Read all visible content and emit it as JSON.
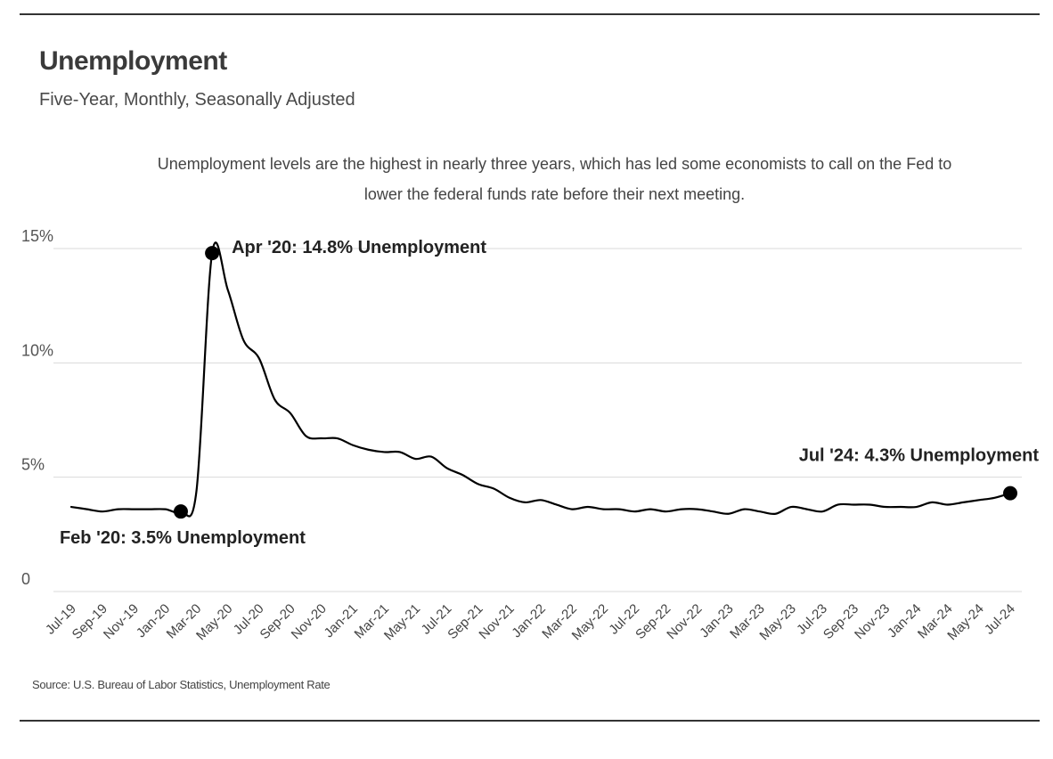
{
  "header": {
    "title": "Unemployment",
    "subtitle": "Five-Year, Monthly, Seasonally Adjusted",
    "note_line1": "Unemployment levels are the highest in nearly three years, which has led some economists to call on the Fed to",
    "note_line2": "lower the federal funds rate before their next meeting."
  },
  "footer": {
    "source": "Source:  U.S. Bureau of Labor Statistics, Unemployment Rate"
  },
  "colors": {
    "line": "#000000",
    "grid": "#d9d9d9",
    "rule": "#333333"
  },
  "chart_data": {
    "type": "line",
    "title": "Unemployment",
    "subtitle": "Five-Year, Monthly, Seasonally Adjusted",
    "ylim": [
      0,
      15
    ],
    "y_ticks": [
      {
        "value": 0,
        "label": "0"
      },
      {
        "value": 5,
        "label": "5%"
      },
      {
        "value": 10,
        "label": "10%"
      },
      {
        "value": 15,
        "label": "15%"
      }
    ],
    "x_tick_labels": [
      "Jul-19",
      "Sep-19",
      "Nov-19",
      "Jan-20",
      "Mar-20",
      "May-20",
      "Jul-20",
      "Sep-20",
      "Nov-20",
      "Jan-21",
      "Mar-21",
      "May-21",
      "Jul-21",
      "Sep-21",
      "Nov-21",
      "Jan-22",
      "Mar-22",
      "May-22",
      "Jul-22",
      "Sep-22",
      "Nov-22",
      "Jan-23",
      "Mar-23",
      "May-23",
      "Jul-23",
      "Sep-23",
      "Nov-23",
      "Jan-24",
      "Mar-24",
      "May-24",
      "Jul-24"
    ],
    "grid": true,
    "legend": "none",
    "series": [
      {
        "x": [
          "Jul-19",
          "Aug-19",
          "Sep-19",
          "Oct-19",
          "Nov-19",
          "Dec-19",
          "Jan-20",
          "Feb-20",
          "Mar-20",
          "Apr-20",
          "May-20",
          "Jun-20",
          "Jul-20",
          "Aug-20",
          "Sep-20",
          "Oct-20",
          "Nov-20",
          "Dec-20",
          "Jan-21",
          "Feb-21",
          "Mar-21",
          "Apr-21",
          "May-21",
          "Jun-21",
          "Jul-21",
          "Aug-21",
          "Sep-21",
          "Oct-21",
          "Nov-21",
          "Dec-21",
          "Jan-22",
          "Feb-22",
          "Mar-22",
          "Apr-22",
          "May-22",
          "Jun-22",
          "Jul-22",
          "Aug-22",
          "Sep-22",
          "Oct-22",
          "Nov-22",
          "Dec-22",
          "Jan-23",
          "Feb-23",
          "Mar-23",
          "Apr-23",
          "May-23",
          "Jun-23",
          "Jul-23",
          "Aug-23",
          "Sep-23",
          "Oct-23",
          "Nov-23",
          "Dec-23",
          "Jan-24",
          "Feb-24",
          "Mar-24",
          "Apr-24",
          "May-24",
          "Jun-24",
          "Jul-24"
        ],
        "values": [
          3.7,
          3.6,
          3.5,
          3.6,
          3.6,
          3.6,
          3.6,
          3.5,
          4.4,
          14.8,
          13.2,
          11.0,
          10.2,
          8.4,
          7.8,
          6.8,
          6.7,
          6.7,
          6.4,
          6.2,
          6.1,
          6.1,
          5.8,
          5.9,
          5.4,
          5.1,
          4.7,
          4.5,
          4.1,
          3.9,
          4.0,
          3.8,
          3.6,
          3.7,
          3.6,
          3.6,
          3.5,
          3.6,
          3.5,
          3.6,
          3.6,
          3.5,
          3.4,
          3.6,
          3.5,
          3.4,
          3.7,
          3.6,
          3.5,
          3.8,
          3.8,
          3.8,
          3.7,
          3.7,
          3.7,
          3.9,
          3.8,
          3.9,
          4.0,
          4.1,
          4.3
        ]
      }
    ],
    "annotations": [
      {
        "x": "Feb-20",
        "value": 3.5,
        "label": "Feb '20: 3.5% Unemployment"
      },
      {
        "x": "Apr-20",
        "value": 14.8,
        "label": "Apr '20: 14.8% Unemployment"
      },
      {
        "x": "Jul-24",
        "value": 4.3,
        "label": "Jul '24: 4.3% Unemployment"
      }
    ]
  }
}
